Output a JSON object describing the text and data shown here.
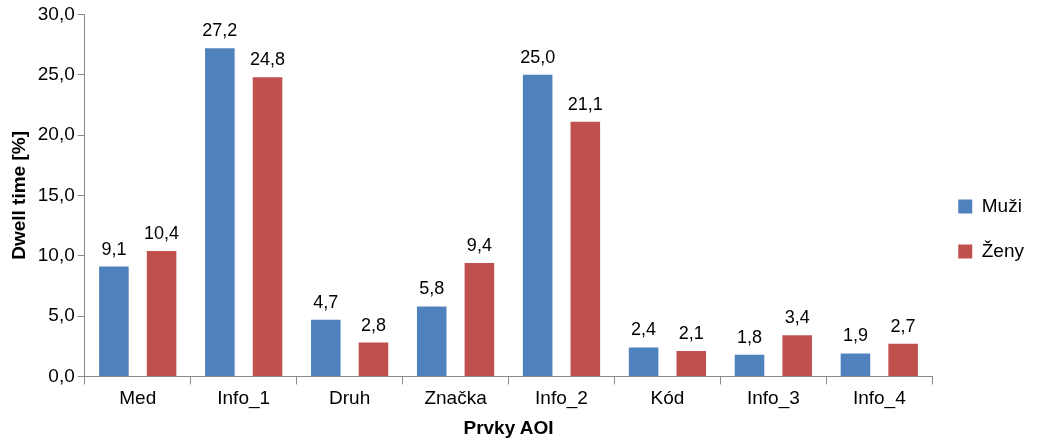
{
  "chart_data": {
    "type": "bar",
    "xlabel": "Prvky AOI",
    "ylabel": "Dwell time [%]",
    "categories": [
      "Med",
      "Info_1",
      "Druh",
      "Značka",
      "Info_2",
      "Kód",
      "Info_3",
      "Info_4"
    ],
    "series": [
      {
        "name": "Muži",
        "color": "#4f81bd",
        "values": [
          9.1,
          27.2,
          4.7,
          5.8,
          25.0,
          2.4,
          1.8,
          1.9
        ],
        "value_labels": [
          "9,1",
          "27,2",
          "4,7",
          "5,8",
          "25,0",
          "2,4",
          "1,8",
          "1,9"
        ]
      },
      {
        "name": "Ženy",
        "color": "#c0504d",
        "values": [
          10.4,
          24.8,
          2.8,
          9.4,
          21.1,
          2.1,
          3.4,
          2.7
        ],
        "value_labels": [
          "10,4",
          "24,8",
          "2,8",
          "9,4",
          "21,1",
          "2,1",
          "3,4",
          "2,7"
        ]
      }
    ],
    "ylim": [
      0,
      30
    ],
    "yticks": [
      {
        "value": 0,
        "label": "0,0"
      },
      {
        "value": 5,
        "label": "5,0"
      },
      {
        "value": 10,
        "label": "10,0"
      },
      {
        "value": 15,
        "label": "15,0"
      },
      {
        "value": 20,
        "label": "20,0"
      },
      {
        "value": 25,
        "label": "25,0"
      },
      {
        "value": 30,
        "label": "30,0"
      }
    ],
    "legend": "right"
  }
}
